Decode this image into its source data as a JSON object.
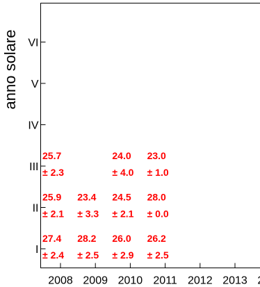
{
  "chart_data": {
    "type": "table",
    "title": "",
    "xlabel": "",
    "ylabel": "anno solare",
    "x": [
      "2008",
      "2009",
      "2010",
      "2011",
      "2012",
      "2013",
      "2014"
    ],
    "y": [
      "I",
      "II",
      "III",
      "IV",
      "V",
      "VI"
    ],
    "text_color": "#ff0000",
    "cells": [
      {
        "x": "2008",
        "y": "I",
        "value": "27.4",
        "error": "± 2.4"
      },
      {
        "x": "2009",
        "y": "I",
        "value": "28.2",
        "error": "± 2.5"
      },
      {
        "x": "2010",
        "y": "I",
        "value": "26.0",
        "error": "± 2.9"
      },
      {
        "x": "2011",
        "y": "I",
        "value": "26.2",
        "error": "± 2.5"
      },
      {
        "x": "2008",
        "y": "II",
        "value": "25.9",
        "error": "± 2.1"
      },
      {
        "x": "2009",
        "y": "II",
        "value": "23.4",
        "error": "± 3.3"
      },
      {
        "x": "2010",
        "y": "II",
        "value": "24.5",
        "error": "± 2.1"
      },
      {
        "x": "2011",
        "y": "II",
        "value": "28.0",
        "error": "± 0.0"
      },
      {
        "x": "2008",
        "y": "III",
        "value": "25.7",
        "error": "± 2.3"
      },
      {
        "x": "2010",
        "y": "III",
        "value": "24.0",
        "error": "± 4.0"
      },
      {
        "x": "2011",
        "y": "III",
        "value": "23.0",
        "error": "± 1.0"
      }
    ]
  }
}
